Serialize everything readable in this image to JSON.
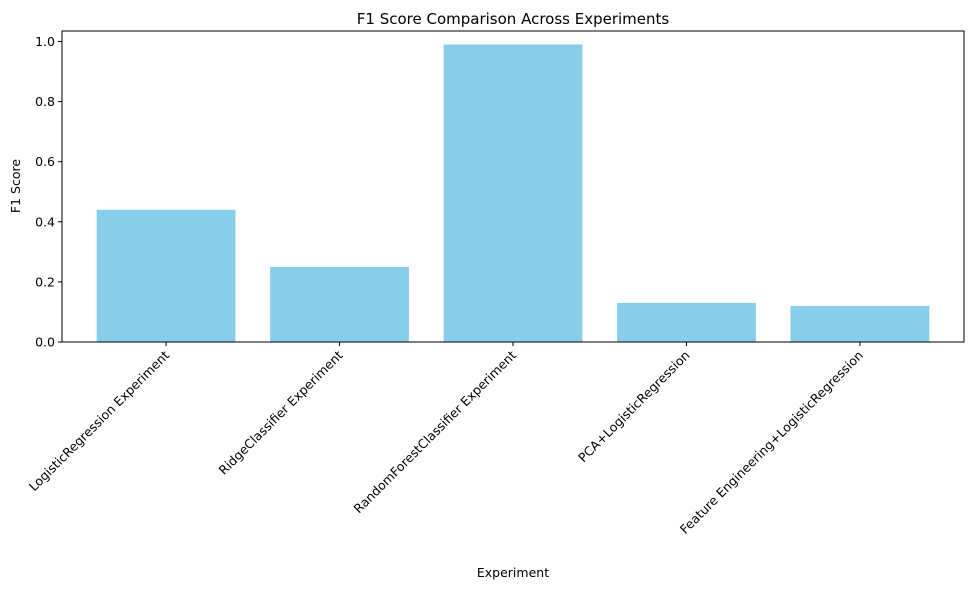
{
  "chart_data": {
    "type": "bar",
    "title": "F1 Score Comparison Across Experiments",
    "xlabel": "Experiment",
    "ylabel": "F1 Score",
    "categories": [
      "LogisticRegression Experiment",
      "RidgeClassifier Experiment",
      "RandomForestClassifier Experiment",
      "PCA+LogisticRegression",
      "Feature Engineering+LogisticRegression"
    ],
    "values": [
      0.44,
      0.25,
      0.99,
      0.13,
      0.12
    ],
    "ylim": [
      0,
      1.035
    ],
    "yticks": [
      "0.0",
      "0.2",
      "0.4",
      "0.6",
      "0.8",
      "1.0"
    ],
    "bar_color": "#87CEEB",
    "grid": false,
    "legend": "none"
  }
}
